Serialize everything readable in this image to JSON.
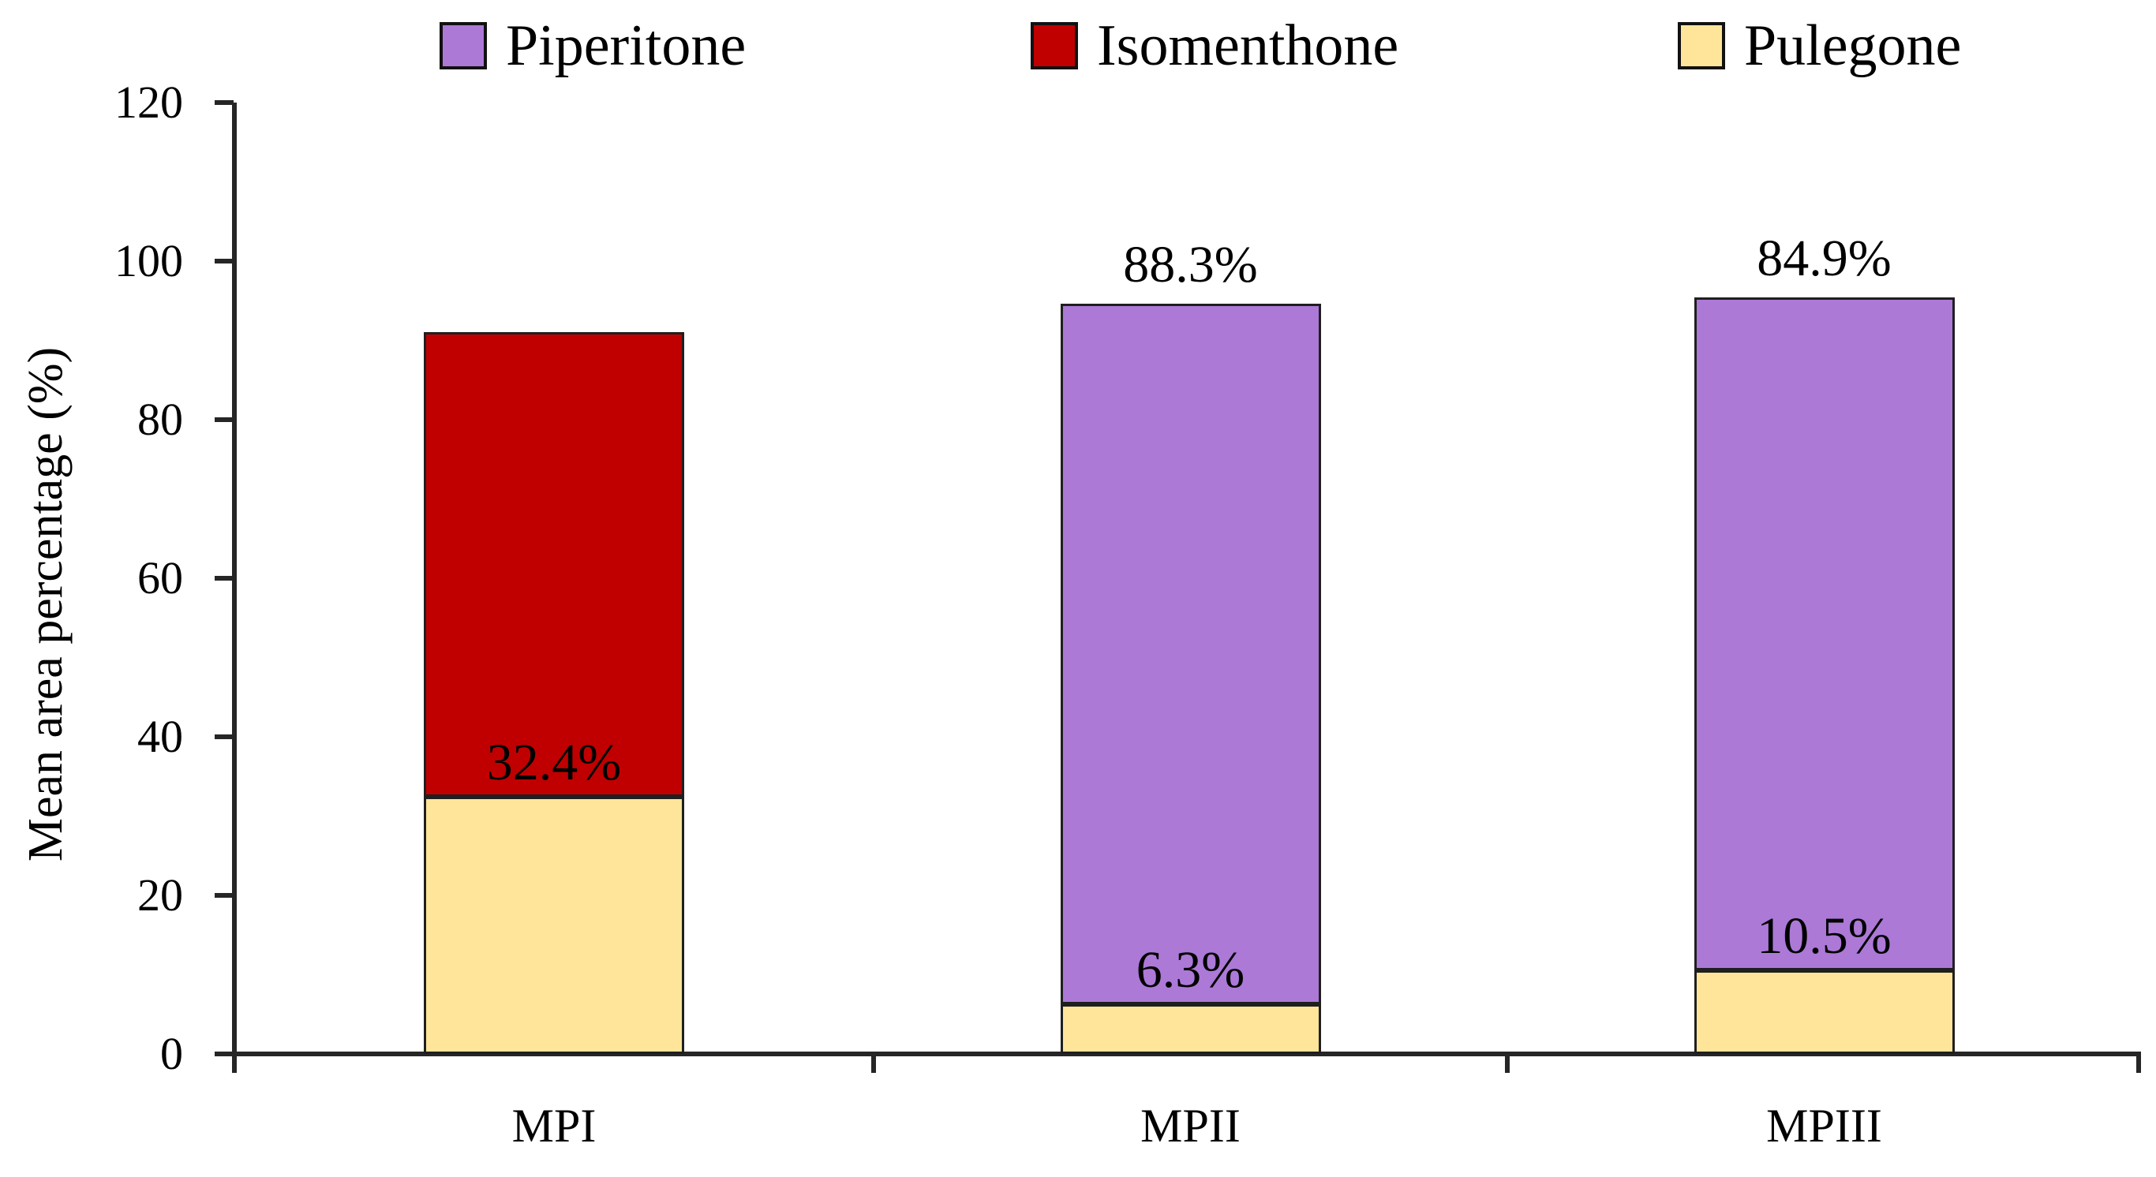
{
  "chart_data": {
    "type": "bar",
    "stacked": true,
    "title": "",
    "xlabel": "",
    "ylabel": "Mean area percentage (%)",
    "ylim": [
      0,
      120
    ],
    "yticks": [
      0,
      20,
      40,
      60,
      80,
      100,
      120
    ],
    "grid": false,
    "categories": [
      "MPI",
      "MPII",
      "MPIII"
    ],
    "series": [
      {
        "name": "Piperitone",
        "color": "#AC79D7",
        "values": [
          0,
          88.3,
          84.9
        ]
      },
      {
        "name": "Isomenthone",
        "color": "#C00000",
        "values": [
          58.6,
          0,
          0
        ]
      },
      {
        "name": "Pulegone",
        "color": "#FFE599",
        "values": [
          32.4,
          6.3,
          10.5
        ]
      }
    ],
    "bar_labels": [
      {
        "category": "MPI",
        "inside_label": "32.4%",
        "top_label": ""
      },
      {
        "category": "MPII",
        "inside_label": "6.3%",
        "top_label": "88.3%"
      },
      {
        "category": "MPIII",
        "inside_label": "10.5%",
        "top_label": "84.9%"
      }
    ],
    "legend": {
      "position": "top",
      "entries": [
        "Piperitone",
        "Isomenthone",
        "Pulegone"
      ]
    }
  },
  "colors": {
    "axis": "#262626",
    "bar_border": "#1f1f1f",
    "background": "#ffffff",
    "text": "#000000"
  }
}
